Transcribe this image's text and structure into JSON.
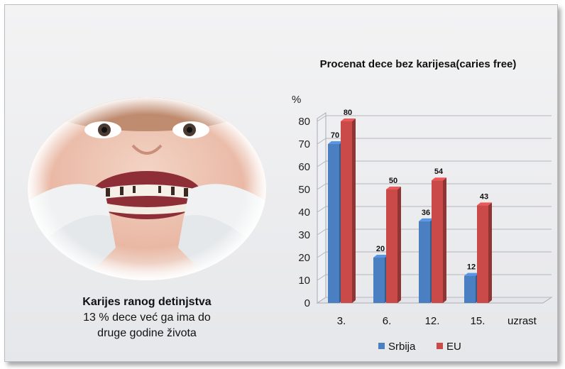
{
  "caption": {
    "title": "Karijes ranog detinjstva",
    "line1": "13 % dece već ga ima do",
    "line2": "druge godine života"
  },
  "chart_data": {
    "type": "bar",
    "title": "Procenat dece bez karijesa(caries free)",
    "ylabel": "%",
    "xlabel": "uzrast",
    "categories": [
      "3.",
      "6.",
      "12.",
      "15."
    ],
    "ylim": [
      0,
      80
    ],
    "yticks": [
      0,
      10,
      20,
      30,
      40,
      50,
      60,
      70,
      80
    ],
    "grid": true,
    "legend_position": "bottom",
    "series": [
      {
        "name": "Srbija",
        "values": [
          70,
          20,
          36,
          12
        ],
        "color": "#4a7fc1"
      },
      {
        "name": "EU",
        "values": [
          80,
          50,
          54,
          43
        ],
        "color": "#c94a48"
      }
    ]
  }
}
